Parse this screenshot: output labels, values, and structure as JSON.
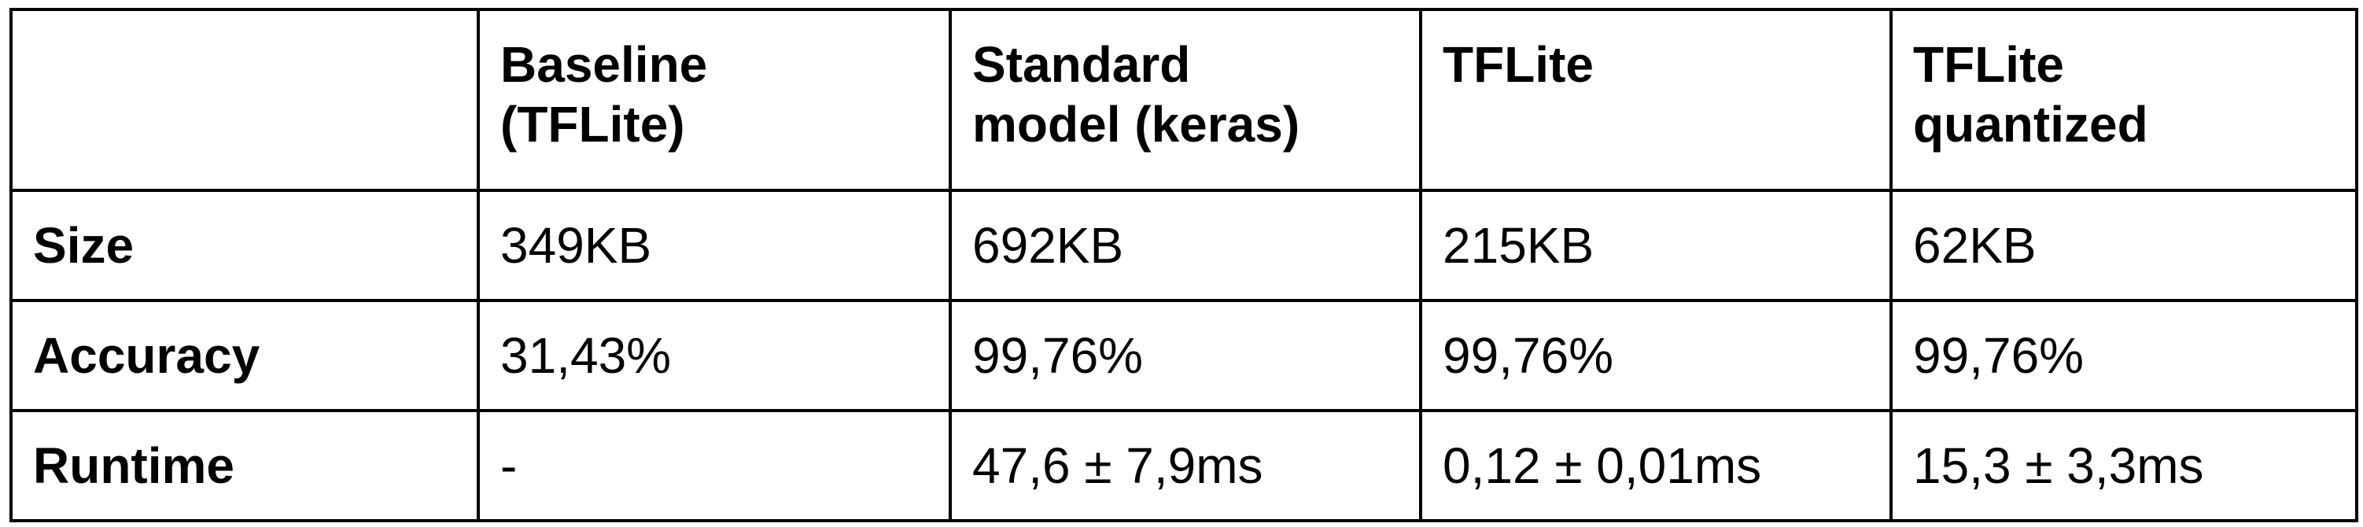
{
  "table": {
    "corner": "",
    "columns": [
      {
        "line1": "Baseline",
        "line2": "(TFLite)"
      },
      {
        "line1": "Standard",
        "line2": "model (keras)"
      },
      {
        "line1": "TFLite",
        "line2": ""
      },
      {
        "line1": "TFLite",
        "line2": "quantized"
      }
    ],
    "rows": [
      {
        "label": "Size",
        "cells": [
          "349KB",
          "692KB",
          "215KB",
          "62KB"
        ]
      },
      {
        "label": "Accuracy",
        "cells": [
          "31,43%",
          "99,76%",
          "99,76%",
          "99,76%"
        ]
      },
      {
        "label": "Runtime",
        "cells": [
          "-",
          "47,6 ± 7,9ms",
          "0,12 ± 0,01ms",
          "15,3 ± 3,3ms"
        ]
      }
    ]
  }
}
